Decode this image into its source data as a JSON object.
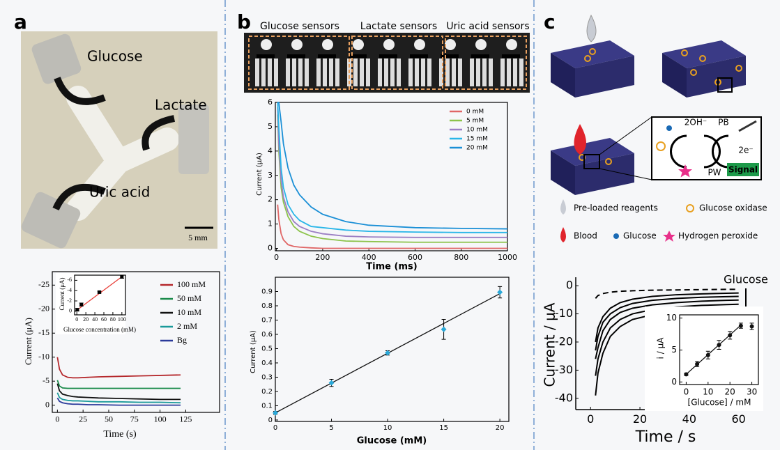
{
  "panels": {
    "a": {
      "letter": "a",
      "photo_labels": [
        "Glucose",
        "Lactate",
        "Uric acid"
      ],
      "scale_bar": "5 mm"
    },
    "b": {
      "letter": "b",
      "sensor_labels": [
        "Glucose sensors",
        "Lactate sensors",
        "Uric acid sensors"
      ]
    },
    "c": {
      "letter": "c",
      "reaction": [
        "2OH⁻",
        "PB",
        "2e⁻",
        "PW"
      ],
      "signal": "Signal",
      "legend": [
        "Pre-loaded reagents",
        "Glucose oxidase",
        "Blood",
        "Glucose",
        "Hydrogen peroxide"
      ]
    }
  },
  "chart_data": [
    {
      "type": "line",
      "x_label": "Time (s)",
      "y_label": "Current (μA)",
      "xlim": [
        -5,
        158
      ],
      "ylim": [
        1.5,
        -27.8
      ],
      "xticks": [
        0,
        25,
        50,
        75,
        100,
        125
      ],
      "yticks": [
        -25,
        -20,
        -15,
        -10,
        -5,
        0
      ],
      "legend": "right",
      "x": [
        0,
        2,
        5,
        10,
        15,
        20,
        30,
        40,
        60,
        80,
        100,
        120
      ],
      "series": [
        {
          "name": "100 mM",
          "color": "#b5282c",
          "values": [
            -10,
            -7.5,
            -6.3,
            -5.8,
            -5.7,
            -5.7,
            -5.8,
            -5.9,
            -6.0,
            -6.1,
            -6.2,
            -6.3
          ]
        },
        {
          "name": "50 mM",
          "color": "#1a8a4a",
          "values": [
            -5.2,
            -4,
            -3.6,
            -3.5,
            -3.5,
            -3.5,
            -3.5,
            -3.5,
            -3.5,
            -3.5,
            -3.5,
            -3.5
          ]
        },
        {
          "name": "10 mM",
          "color": "#111111",
          "values": [
            -4.5,
            -3,
            -2.3,
            -2,
            -1.8,
            -1.7,
            -1.6,
            -1.5,
            -1.4,
            -1.3,
            -1.2,
            -1.2
          ]
        },
        {
          "name": "2 mM",
          "color": "#1a9a9a",
          "values": [
            -2.6,
            -1.6,
            -1.2,
            -1,
            -0.9,
            -0.9,
            -0.8,
            -0.7,
            -0.7,
            -0.6,
            -0.6,
            -0.5
          ]
        },
        {
          "name": "Bg",
          "color": "#2a3a9a",
          "values": [
            -1.5,
            -0.8,
            -0.5,
            -0.3,
            -0.2,
            -0.2,
            -0.1,
            -0.1,
            0,
            0,
            0,
            0
          ]
        }
      ]
    },
    {
      "type": "scatter",
      "x_label": "Glucose concentration (mM)",
      "y_label": "Current (μA)",
      "xlim": [
        -5,
        108
      ],
      "ylim": [
        0.7,
        -7
      ],
      "xticks": [
        0,
        20,
        40,
        60,
        80,
        100
      ],
      "yticks": [
        0,
        -2,
        -4,
        -6
      ],
      "x": [
        1,
        10,
        50,
        100
      ],
      "values": [
        -0.3,
        -1.3,
        -3.7,
        -6.7
      ],
      "errors": [
        0.2,
        0.3,
        0.2,
        0.3
      ],
      "color": "#000000",
      "trend_line": {
        "x": [
          0,
          100
        ],
        "values": [
          -0.2,
          -6.7
        ],
        "color": "#e8403a"
      }
    },
    {
      "type": "line",
      "x_label": "Time (ms)",
      "y_label": "Current (μA)",
      "xlim": [
        -5,
        1000
      ],
      "ylim": [
        -0.1,
        6
      ],
      "xticks": [
        0,
        200,
        400,
        600,
        800,
        1000
      ],
      "yticks": [
        0,
        1,
        2,
        3,
        4,
        5,
        6
      ],
      "legend": "upper right",
      "x": [
        5,
        10,
        20,
        30,
        50,
        75,
        100,
        150,
        200,
        300,
        400,
        600,
        800,
        1000
      ],
      "series": [
        {
          "name": "0 mM",
          "color": "#e06666",
          "values": [
            1.8,
            1.2,
            0.6,
            0.35,
            0.15,
            0.08,
            0.05,
            0.02,
            0,
            0,
            0,
            0,
            0,
            0
          ]
        },
        {
          "name": "5 mM",
          "color": "#8cc34a",
          "values": [
            5.5,
            4,
            2.5,
            1.9,
            1.3,
            0.9,
            0.7,
            0.5,
            0.4,
            0.3,
            0.28,
            0.25,
            0.25,
            0.25
          ]
        },
        {
          "name": "10 mM",
          "color": "#9b7fc4",
          "values": [
            5.8,
            4.3,
            2.8,
            2.1,
            1.5,
            1.1,
            0.9,
            0.7,
            0.6,
            0.5,
            0.47,
            0.45,
            0.45,
            0.45
          ]
        },
        {
          "name": "15 mM",
          "color": "#29b6e8",
          "values": [
            6,
            5,
            3.3,
            2.5,
            1.8,
            1.4,
            1.15,
            0.9,
            0.85,
            0.75,
            0.7,
            0.67,
            0.65,
            0.65
          ]
        },
        {
          "name": "20 mM",
          "color": "#1a8fd6",
          "values": [
            6,
            6,
            5.2,
            4.3,
            3.3,
            2.6,
            2.2,
            1.7,
            1.4,
            1.1,
            0.95,
            0.85,
            0.82,
            0.8
          ]
        }
      ]
    },
    {
      "type": "scatter",
      "x_label": "Glucose (mM)",
      "y_label": "Current (μA)",
      "xlim": [
        0,
        20.8
      ],
      "ylim": [
        -0.01,
        1.0
      ],
      "xticks": [
        0,
        5,
        10,
        15,
        20
      ],
      "yticks": [
        0,
        0.1,
        0.2,
        0.3,
        0.4,
        0.5,
        0.6,
        0.7,
        0.8,
        0.9
      ],
      "x": [
        0,
        5,
        10,
        15,
        20
      ],
      "values": [
        0.05,
        0.26,
        0.47,
        0.635,
        0.895
      ],
      "errors": [
        0.01,
        0.025,
        0.015,
        0.07,
        0.04
      ],
      "color": "#2aa8d8",
      "trend_line": {
        "x": [
          0,
          20
        ],
        "values": [
          0.05,
          0.885
        ],
        "color": "#111111"
      }
    },
    {
      "type": "line",
      "x_label": "Time / s",
      "y_label": "Current / μA",
      "xlim": [
        -6,
        68
      ],
      "ylim": [
        -44,
        3
      ],
      "xticks": [
        0,
        20,
        40,
        60
      ],
      "yticks": [
        0,
        -10,
        -20,
        -30,
        -40
      ],
      "annotation": "Glucose",
      "x": [
        2,
        3,
        5,
        8,
        12,
        17,
        25,
        35,
        45,
        55,
        60
      ],
      "series": [
        {
          "color": "#000000",
          "dashed": true,
          "values": [
            -4.5,
            -3.5,
            -2.8,
            -2.3,
            -2,
            -1.8,
            -1.6,
            -1.5,
            -1.4,
            -1.3,
            -1.3
          ]
        },
        {
          "color": "#000000",
          "values": [
            -20,
            -15,
            -11,
            -8,
            -6,
            -4.8,
            -3.8,
            -3.2,
            -2.9,
            -2.7,
            -2.6
          ]
        },
        {
          "color": "#000000",
          "values": [
            -23,
            -18,
            -13,
            -10,
            -7.8,
            -6.3,
            -5.2,
            -4.5,
            -4.1,
            -3.9,
            -3.8
          ]
        },
        {
          "color": "#000000",
          "values": [
            -26,
            -22,
            -16,
            -12,
            -9.5,
            -8,
            -6.8,
            -6,
            -5.5,
            -5.2,
            -5.1
          ]
        },
        {
          "color": "#000000",
          "values": [
            -32,
            -26,
            -20,
            -15,
            -12,
            -10,
            -8.5,
            -7.5,
            -7,
            -6.7,
            -6.6
          ]
        },
        {
          "color": "#000000",
          "values": [
            -39,
            -31,
            -24,
            -18,
            -14.5,
            -12,
            -10.3,
            -9.3,
            -8.7,
            -8.4,
            -8.3
          ]
        }
      ]
    },
    {
      "type": "scatter",
      "x_label": "[Glucose] / mM",
      "y_label": "i / μA",
      "xlim": [
        -3,
        33
      ],
      "ylim": [
        -0.4,
        10.5
      ],
      "xticks": [
        0,
        10,
        20,
        30
      ],
      "yticks": [
        0,
        5,
        10
      ],
      "x": [
        0,
        5,
        10,
        15,
        20,
        25,
        30
      ],
      "values": [
        1.2,
        2.8,
        4.2,
        5.8,
        7.3,
        8.8,
        8.7
      ],
      "errors": [
        0.2,
        0.4,
        0.6,
        0.7,
        0.6,
        0.4,
        0.5
      ],
      "color": "#111111",
      "trend_line": {
        "x": [
          0,
          25
        ],
        "values": [
          1.2,
          8.9
        ],
        "color": "#111111"
      }
    }
  ]
}
